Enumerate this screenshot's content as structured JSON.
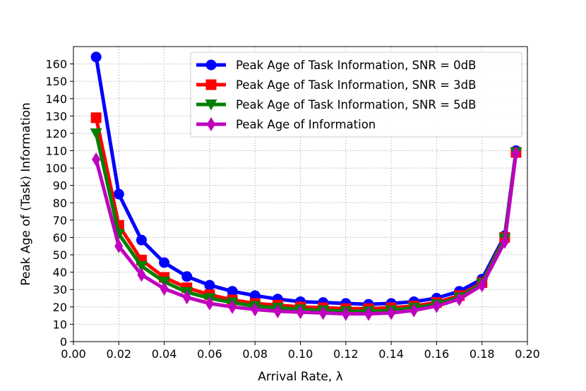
{
  "chart_data": {
    "type": "line",
    "title": "",
    "xlabel": "Arrival Rate, λ",
    "ylabel": "Peak Age of (Task) Information",
    "xlim": [
      0.0,
      0.2
    ],
    "ylim": [
      0,
      170
    ],
    "xticks": [
      "0.00",
      "0.02",
      "0.04",
      "0.06",
      "0.08",
      "0.10",
      "0.12",
      "0.14",
      "0.16",
      "0.18",
      "0.20"
    ],
    "yticks": [
      "0",
      "10",
      "20",
      "30",
      "40",
      "50",
      "60",
      "70",
      "80",
      "90",
      "100",
      "110",
      "120",
      "130",
      "140",
      "150",
      "160"
    ],
    "grid": true,
    "legend_position": "top-right",
    "x": [
      0.01,
      0.02,
      0.03,
      0.04,
      0.05,
      0.06,
      0.07,
      0.08,
      0.09,
      0.1,
      0.11,
      0.12,
      0.13,
      0.14,
      0.15,
      0.16,
      0.17,
      0.18,
      0.19,
      0.195
    ],
    "series": [
      {
        "name": "Peak Age of Task Information, SNR = 0dB",
        "color": "#0000ff",
        "marker": "circle",
        "values": [
          164,
          85,
          58.5,
          45.5,
          37.5,
          32.5,
          29,
          26.5,
          24.5,
          23,
          22.5,
          22,
          21.5,
          22,
          23,
          25,
          29,
          36,
          61,
          110
        ]
      },
      {
        "name": "Peak Age of Task Information, SNR = 3dB",
        "color": "#ff0000",
        "marker": "square",
        "values": [
          129,
          67,
          47,
          37,
          31,
          27,
          24,
          22,
          21,
          20,
          19.5,
          19,
          19,
          19.5,
          20.5,
          22.5,
          26.5,
          34,
          60,
          109
        ]
      },
      {
        "name": "Peak Age of Task Information, SNR = 5dB",
        "color": "#008000",
        "marker": "triangle-down",
        "values": [
          120,
          62,
          43.5,
          34.5,
          28.5,
          25,
          22.5,
          20.5,
          19.5,
          18.5,
          18,
          17.5,
          17.5,
          18,
          19.5,
          21.5,
          25.5,
          33.5,
          59.5,
          109
        ]
      },
      {
        "name": "Peak Age of Information",
        "color": "#bf00bf",
        "marker": "thin-diamond",
        "values": [
          105,
          55,
          38.5,
          30.5,
          25.5,
          22,
          20,
          18.5,
          17.5,
          17,
          16.5,
          16,
          16,
          16.5,
          18,
          20.5,
          24.5,
          32.5,
          57.5,
          108.5
        ]
      }
    ]
  }
}
